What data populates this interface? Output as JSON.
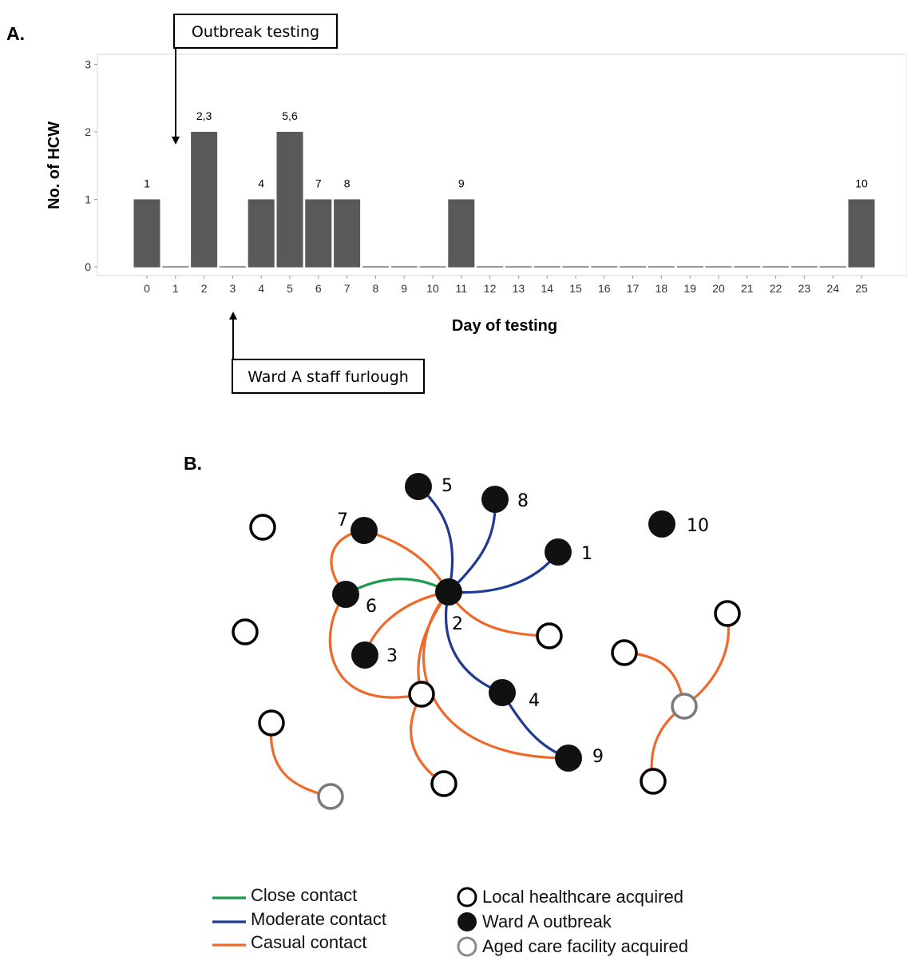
{
  "panel_a": {
    "label": "A.",
    "annotations": {
      "outbreak_testing": "Outbreak testing",
      "ward_a_staff_furlough": "Ward A staff furlough"
    }
  },
  "panel_b": {
    "label": "B.",
    "legend": {
      "edges": [
        {
          "label": "Close contact",
          "color": "#1a9a4a"
        },
        {
          "label": "Moderate contact",
          "color": "#1f3a93"
        },
        {
          "label": "Casual contact",
          "color": "#ef6a2a"
        }
      ],
      "nodes": [
        {
          "label": "Local healthcare acquired",
          "style": "open-black"
        },
        {
          "label": "Ward A outbreak",
          "style": "filled-black"
        },
        {
          "label": "Aged care facility acquired",
          "style": "open-grey"
        }
      ]
    }
  },
  "chart_data": [
    {
      "type": "bar",
      "xlabel": "Day of testing",
      "ylabel": "No. of HCW",
      "ylim": [
        0,
        3
      ],
      "yticks": [
        "0",
        "1",
        "2",
        "3"
      ],
      "categories": [
        "0",
        "1",
        "2",
        "3",
        "4",
        "5",
        "6",
        "7",
        "8",
        "9",
        "10",
        "11",
        "12",
        "13",
        "14",
        "15",
        "16",
        "17",
        "18",
        "19",
        "20",
        "21",
        "22",
        "23",
        "24",
        "25"
      ],
      "values": [
        1,
        0,
        2,
        0,
        1,
        2,
        1,
        1,
        0,
        0,
        0,
        1,
        0,
        0,
        0,
        0,
        0,
        0,
        0,
        0,
        0,
        0,
        0,
        0,
        0,
        1
      ],
      "bar_labels": [
        "1",
        "",
        "2,3",
        "",
        "4",
        "5,6",
        "7",
        "8",
        "",
        "",
        "",
        "9",
        "",
        "",
        "",
        "",
        "",
        "",
        "",
        "",
        "",
        "",
        "",
        "",
        "",
        "10"
      ],
      "bar_color": "#595959",
      "grid": false
    },
    {
      "type": "network",
      "node_labels": [
        "1",
        "2",
        "3",
        "4",
        "5",
        "6",
        "7",
        "8",
        "9",
        "10"
      ],
      "edge_colors": {
        "close": "#1a9a4a",
        "moderate": "#1f3a93",
        "casual": "#ef6a2a"
      },
      "edges": [
        {
          "from": "2",
          "to": "6",
          "kind": "close"
        },
        {
          "from": "2",
          "to": "5",
          "kind": "moderate"
        },
        {
          "from": "2",
          "to": "8",
          "kind": "moderate"
        },
        {
          "from": "2",
          "to": "1",
          "kind": "moderate"
        },
        {
          "from": "2",
          "to": "4",
          "kind": "moderate"
        },
        {
          "from": "4",
          "to": "9",
          "kind": "moderate"
        },
        {
          "from": "6",
          "to": "7",
          "kind": "casual"
        },
        {
          "from": "7",
          "to": "2",
          "kind": "casual"
        },
        {
          "from": "2",
          "to": "3",
          "kind": "casual"
        },
        {
          "from": "2",
          "to": "9",
          "kind": "casual"
        },
        {
          "from": "2",
          "to": "local-healthcare-acquired",
          "kind": "casual"
        },
        {
          "from": "2",
          "to": "local-healthcare-acquired",
          "kind": "casual"
        },
        {
          "from": "6",
          "to": "local-healthcare-acquired",
          "kind": "casual"
        },
        {
          "from": "local-healthcare-acquired",
          "to": "local-healthcare-acquired",
          "kind": "casual"
        },
        {
          "from": "local-healthcare-acquired",
          "to": "aged-care-facility-acquired",
          "kind": "casual"
        },
        {
          "from": "local-healthcare-acquired",
          "to": "aged-care-facility-acquired",
          "kind": "casual"
        },
        {
          "from": "local-healthcare-acquired",
          "to": "aged-care-facility-acquired",
          "kind": "casual"
        },
        {
          "from": "local-healthcare-acquired",
          "to": "aged-care-facility-acquired",
          "kind": "casual"
        }
      ]
    }
  ]
}
